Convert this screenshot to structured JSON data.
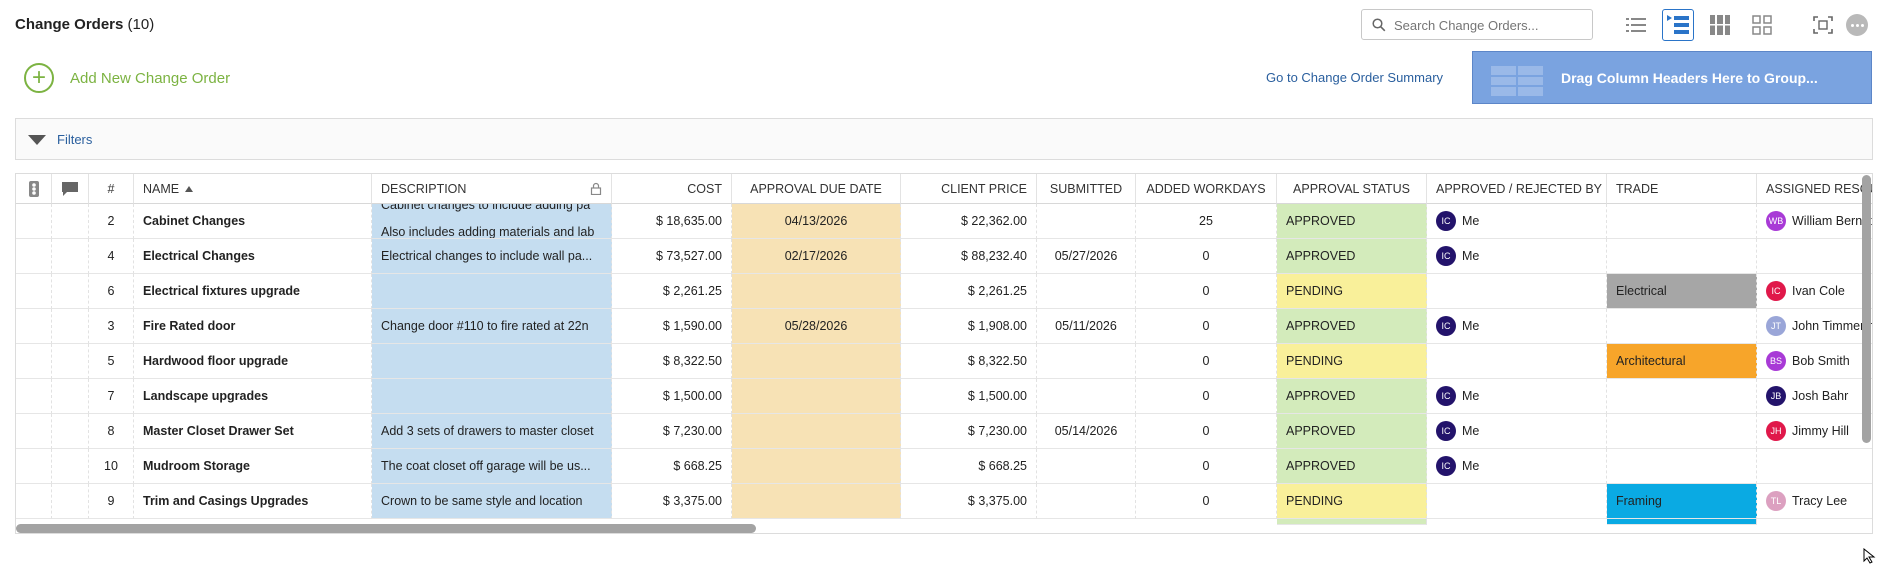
{
  "header": {
    "title": "Change Orders",
    "count": "(10)",
    "search_placeholder": "Search Change Orders...",
    "add_label": "Add New Change Order",
    "summary_link": "Go to Change Order Summary",
    "group_zone": "Drag Column Headers Here to Group...",
    "filters_label": "Filters"
  },
  "columns": {
    "num": "#",
    "name": "NAME",
    "description": "DESCRIPTION",
    "cost": "COST",
    "approval_due": "APPROVAL DUE DATE",
    "client_price": "CLIENT PRICE",
    "submitted": "SUBMITTED",
    "workdays": "ADDED WORKDAYS",
    "status": "APPROVAL STATUS",
    "approved_by": "APPROVED / REJECTED BY",
    "trade": "TRADE",
    "assigned": "ASSIGNED RESOUR"
  },
  "rows": [
    {
      "num": "2",
      "name": "Cabinet Changes",
      "description": "Cabinet changes to include adding pa",
      "description2": "Also includes adding materials and lab",
      "cost": "$ 18,635.00",
      "due": "04/13/2026",
      "client_price": "$ 22,362.00",
      "submitted": "",
      "workdays": "25",
      "status": "APPROVED",
      "approver_initials": "IC",
      "approver": "Me",
      "trade": "",
      "trade_color": "",
      "res_initials": "WB",
      "resource": "William Bernst",
      "res_color": "#a83ad6"
    },
    {
      "num": "4",
      "name": "Electrical Changes",
      "description": "Electrical changes to include wall pa...",
      "cost": "$ 73,527.00",
      "due": "02/17/2026",
      "client_price": "$ 88,232.40",
      "submitted": "05/27/2026",
      "workdays": "0",
      "status": "APPROVED",
      "approver_initials": "IC",
      "approver": "Me",
      "trade": "",
      "trade_color": "",
      "res_initials": "",
      "resource": "",
      "res_color": ""
    },
    {
      "num": "6",
      "name": "Electrical fixtures upgrade",
      "description": "",
      "cost": "$ 2,261.25",
      "due": "",
      "client_price": "$ 2,261.25",
      "submitted": "",
      "workdays": "0",
      "status": "PENDING",
      "approver_initials": "",
      "approver": "",
      "trade": "Electrical",
      "trade_color": "#a6a6a6",
      "res_initials": "IC",
      "resource": "Ivan Cole",
      "res_color": "#e0184a"
    },
    {
      "num": "3",
      "name": "Fire Rated door",
      "description": "Change door #110 to fire rated at 22n",
      "cost": "$ 1,590.00",
      "due": "05/28/2026",
      "client_price": "$ 1,908.00",
      "submitted": "05/11/2026",
      "workdays": "0",
      "status": "APPROVED",
      "approver_initials": "IC",
      "approver": "Me",
      "trade": "",
      "trade_color": "",
      "res_initials": "JT",
      "resource": "John Timmerm",
      "res_color": "#9aa6d8"
    },
    {
      "num": "5",
      "name": "Hardwood floor upgrade",
      "description": "",
      "cost": "$ 8,322.50",
      "due": "",
      "client_price": "$ 8,322.50",
      "submitted": "",
      "workdays": "0",
      "status": "PENDING",
      "approver_initials": "",
      "approver": "",
      "trade": "Architectural",
      "trade_color": "#f7a52a",
      "res_initials": "BS",
      "resource": "Bob Smith",
      "res_color": "#a83ad6"
    },
    {
      "num": "7",
      "name": "Landscape upgrades",
      "description": "",
      "cost": "$ 1,500.00",
      "due": "",
      "client_price": "$ 1,500.00",
      "submitted": "",
      "workdays": "0",
      "status": "APPROVED",
      "approver_initials": "IC",
      "approver": "Me",
      "trade": "",
      "trade_color": "",
      "res_initials": "JB",
      "resource": "Josh Bahr",
      "res_color": "#23136b"
    },
    {
      "num": "8",
      "name": "Master Closet Drawer Set",
      "description": "Add 3 sets of drawers to master closet",
      "cost": "$ 7,230.00",
      "due": "",
      "client_price": "$ 7,230.00",
      "submitted": "05/14/2026",
      "workdays": "0",
      "status": "APPROVED",
      "approver_initials": "IC",
      "approver": "Me",
      "trade": "",
      "trade_color": "",
      "res_initials": "JH",
      "resource": "Jimmy Hill",
      "res_color": "#e0184a"
    },
    {
      "num": "10",
      "name": "Mudroom Storage",
      "description": "The coat closet off garage will be us...",
      "cost": "$ 668.25",
      "due": "",
      "client_price": "$ 668.25",
      "submitted": "",
      "workdays": "0",
      "status": "APPROVED",
      "approver_initials": "IC",
      "approver": "Me",
      "trade": "",
      "trade_color": "",
      "res_initials": "",
      "resource": "",
      "res_color": ""
    },
    {
      "num": "9",
      "name": "Trim and Casings Upgrades",
      "description": "Crown to be same style and location",
      "cost": "$ 3,375.00",
      "due": "",
      "client_price": "$ 3,375.00",
      "submitted": "",
      "workdays": "0",
      "status": "PENDING",
      "approver_initials": "",
      "approver": "",
      "trade": "Framing",
      "trade_color": "#0aaae3",
      "res_initials": "TL",
      "resource": "Tracy Lee",
      "res_color": "#dca0c0"
    }
  ],
  "colors": {
    "accent_green": "#7cb342",
    "approver_avatar": "#23136b",
    "group_zone": "#7aa3e0"
  },
  "icons": [
    "search-icon",
    "list-view-icon",
    "detail-list-view-icon",
    "card-view-icon",
    "grid-view-icon",
    "fullscreen-icon",
    "more-icon",
    "filter-triangle-icon",
    "lock-icon",
    "priority-icon",
    "comment-icon",
    "sort-asc-icon",
    "cursor-icon"
  ]
}
